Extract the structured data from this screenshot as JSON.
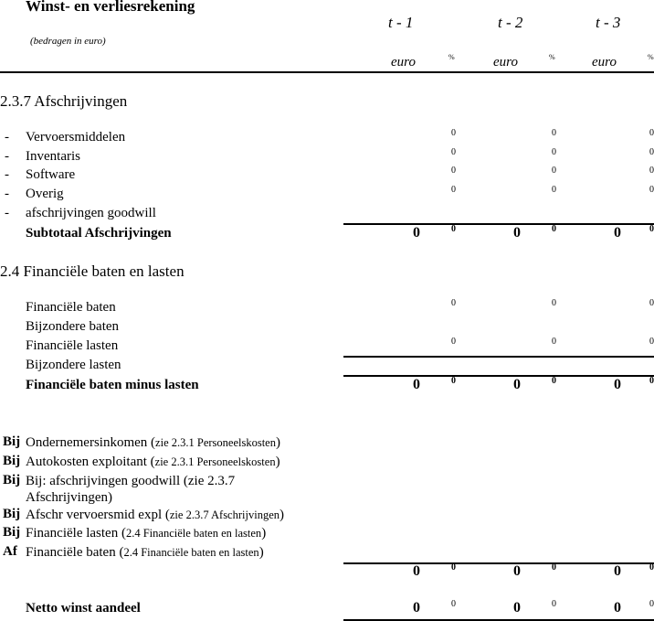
{
  "header": {
    "title": "Winst- en verliesrekening",
    "subtitle": "(bedragen in euro)",
    "periods": [
      "t  - 1",
      "t - 2",
      "t - 3"
    ],
    "unit": "euro",
    "pct": "%"
  },
  "afschrijvingen": {
    "heading": "2.3.7 Afschrijvingen",
    "items": [
      {
        "bullet": "-",
        "label": "Vervoersmiddelen",
        "pct": [
          "0",
          "0",
          "0"
        ]
      },
      {
        "bullet": "-",
        "label": "Inventaris",
        "pct": [
          "0",
          "0",
          "0"
        ]
      },
      {
        "bullet": "-",
        "label": "Software",
        "pct": [
          "0",
          "0",
          "0"
        ]
      },
      {
        "bullet": "-",
        "label": "Overig",
        "pct": [
          "0",
          "0",
          "0"
        ]
      },
      {
        "bullet": "-",
        "label": "afschrijvingen goodwill"
      }
    ],
    "subtotal": {
      "label": "Subtotaal Afschrijvingen",
      "values": [
        "0",
        "0",
        "0"
      ],
      "pct": [
        "0",
        "0",
        "0"
      ]
    }
  },
  "financieel": {
    "heading": "2.4 Financiële baten en lasten",
    "items": [
      {
        "label": "Financiële baten",
        "pct": [
          "0",
          "0",
          "0"
        ]
      },
      {
        "label": "Bijzondere baten"
      },
      {
        "label": "Financiële lasten",
        "pct": [
          "0",
          "0",
          "0"
        ]
      },
      {
        "label": "Bijzondere lasten"
      }
    ],
    "total": {
      "label": "Financiële baten minus lasten",
      "values": [
        "0",
        "0",
        "0"
      ],
      "pct": [
        "0",
        "0",
        "0"
      ]
    }
  },
  "adjustments": [
    {
      "sign": "Bij",
      "label": "Ondernemersinkomen (",
      "ref": "zie 2.3.1 Personeelskosten",
      ")": ")"
    },
    {
      "sign": "Bij",
      "label": "Autokosten exploitant (",
      "ref": "zie 2.3.1 Personeelskosten"
    },
    {
      "sign": "Bij",
      "label": "Bij: afschrijvingen goodwill (zie 2.3.7",
      "label2": "Afschrijvingen)"
    },
    {
      "sign": "Bij",
      "label": "Afschr vervoersmid expl (",
      "ref": "zie 2.3.7 Afschrijvingen"
    },
    {
      "sign": "Bij",
      "label": "Financiële lasten (",
      "ref": "2.4 Financiële baten en lasten"
    },
    {
      "sign": "Af",
      "label": "Financiële baten (",
      "ref": "2.4 Financiële baten en lasten"
    }
  ],
  "adjust_total": {
    "values": [
      "0",
      "0",
      "0"
    ],
    "pct": [
      "0",
      "0",
      "0"
    ]
  },
  "netto": {
    "label": "Netto winst aandeel",
    "values": [
      "0",
      "0",
      "0"
    ],
    "pct": [
      "0",
      "0",
      "0"
    ]
  }
}
